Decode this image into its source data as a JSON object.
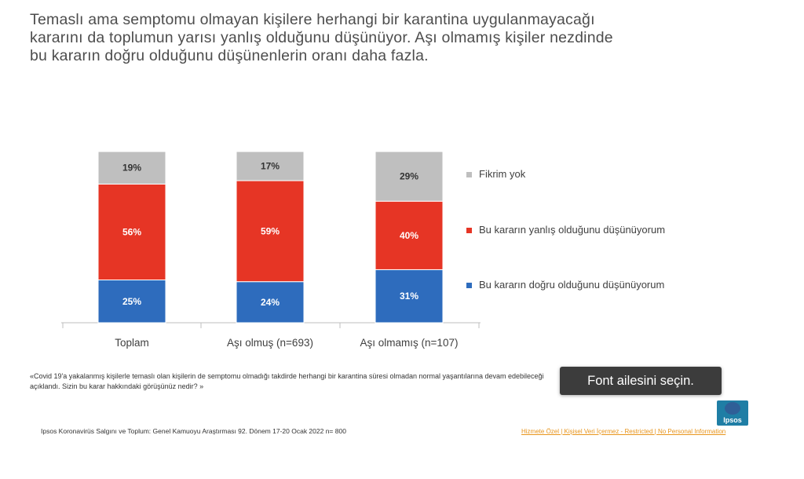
{
  "headline": {
    "line1": "Temaslı ama semptomu olmayan kişilere herhangi bir karantina uygulanmayacağı",
    "line2": "kararını da toplumun yarısı yanlış olduğunu düşünüyor. Aşı olmamış kişiler nezdinde",
    "line3": "bu kararın doğru olduğunu düşünenlerin oranı daha fazla."
  },
  "chart_data": {
    "type": "bar",
    "stacked": true,
    "percent_stacked": true,
    "categories": [
      "Toplam",
      "Aşı olmuş (n=693)",
      "Aşı olmamış (n=107)"
    ],
    "series": [
      {
        "name": "Bu kararın doğru olduğunu düşünüyorum",
        "values": [
          25,
          24,
          31
        ],
        "labels": [
          "25%",
          "24%",
          "31%"
        ],
        "color": "#2e6cbd"
      },
      {
        "name": "Bu kararın yanlış olduğunu düşünüyorum",
        "values": [
          56,
          59,
          40
        ],
        "labels": [
          "56%",
          "59%",
          "40%"
        ],
        "color": "#e63525"
      },
      {
        "name": "Fikrim yok",
        "values": [
          19,
          17,
          29
        ],
        "labels": [
          "19%",
          "17%",
          "29%"
        ],
        "color": "#bfbfbf"
      }
    ],
    "legend_order": [
      "Fikrim yok",
      "Bu kararın yanlış olduğunu düşünüyorum",
      "Bu kararın doğru olduğunu düşünüyorum"
    ],
    "legend_position": "right",
    "ylim": [
      0,
      100
    ],
    "grid": false
  },
  "note": {
    "line1": "«Covid 19'a yakalanmış kişilerle temaslı olan kişilerin de semptomu olmadığı takdirde herhangi bir karantina süresi olmadan normal yaşantılarına devam edebileceği",
    "line2": "açıklandı.  Sizin bu karar hakkındaki görüşünüz nedir? »"
  },
  "source": "Ipsos Koronavirüs  Salgını ve Toplum:  Genel Kamuoyu Araştırması 92. Dönem   17-20  Ocak 2022 n= 800",
  "classification": "Hizmete Özel | Kişisel Veri İçermez - Restricted | No Personal Information",
  "tooltip": "Font ailesini seçin.",
  "logo": {
    "text": "Ipsos"
  },
  "colors": {
    "blue": "#2e6cbd",
    "red": "#e63525",
    "grey": "#bfbfbf",
    "orange": "#e8951c"
  }
}
